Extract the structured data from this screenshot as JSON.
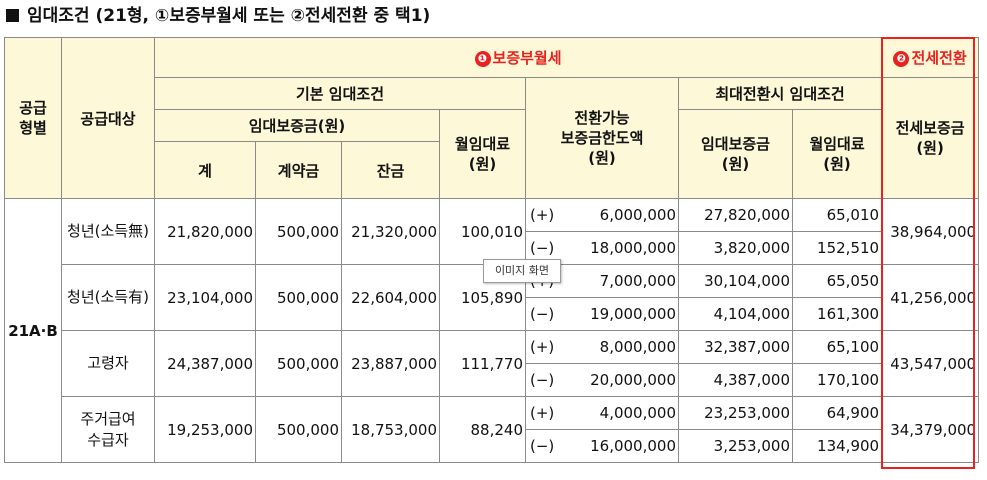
{
  "title": "임대조건 (21형, ①보증부월세 또는 ②전세전환 중 택1)",
  "headers": {
    "supply_type": [
      "공급",
      "형별"
    ],
    "target": "공급대상",
    "option1_marker": "❶",
    "option1": "보증부월세",
    "option2_marker": "❷",
    "option2": "전세전환",
    "basic": "기본 임대조건",
    "deposit": "임대보증금(원)",
    "total": "계",
    "contract": "계약금",
    "balance": "잔금",
    "rent": [
      "월임대료",
      "(원)"
    ],
    "convertible": [
      "전환가능",
      "보증금한도액",
      "(원)"
    ],
    "maxconv": "최대전환시 임대조건",
    "max_deposit": [
      "임대보증금",
      "(원)"
    ],
    "max_rent": [
      "월임대료",
      "(원)"
    ],
    "jeonse": [
      "전세보증금",
      "(원)"
    ]
  },
  "type_label": "21A·B",
  "rows": [
    {
      "target": [
        "청년(소득無)"
      ],
      "total": "21,820,000",
      "contract": "500,000",
      "balance": "21,320,000",
      "rent": "100,010",
      "plus": {
        "sign": "(+)",
        "amount": "6,000,000",
        "deposit": "27,820,000",
        "rent": "65,010"
      },
      "minus": {
        "sign": "(−)",
        "amount": "18,000,000",
        "deposit": "3,820,000",
        "rent": "152,510"
      },
      "jeonse": "38,964,000"
    },
    {
      "target": [
        "청년(소득有)"
      ],
      "total": "23,104,000",
      "contract": "500,000",
      "balance": "22,604,000",
      "rent": "105,890",
      "plus": {
        "sign": "(+)",
        "amount": "7,000,000",
        "deposit": "30,104,000",
        "rent": "65,050"
      },
      "minus": {
        "sign": "(−)",
        "amount": "19,000,000",
        "deposit": "4,104,000",
        "rent": "161,300"
      },
      "jeonse": "41,256,000"
    },
    {
      "target": [
        "고령자"
      ],
      "total": "24,387,000",
      "contract": "500,000",
      "balance": "23,887,000",
      "rent": "111,770",
      "plus": {
        "sign": "(+)",
        "amount": "8,000,000",
        "deposit": "32,387,000",
        "rent": "65,100"
      },
      "minus": {
        "sign": "(−)",
        "amount": "20,000,000",
        "deposit": "4,387,000",
        "rent": "170,100"
      },
      "jeonse": "43,547,000"
    },
    {
      "target": [
        "주거급여",
        "수급자"
      ],
      "total": "19,253,000",
      "contract": "500,000",
      "balance": "18,753,000",
      "rent": "88,240",
      "plus": {
        "sign": "(+)",
        "amount": "4,000,000",
        "deposit": "23,253,000",
        "rent": "64,900"
      },
      "minus": {
        "sign": "(−)",
        "amount": "16,000,000",
        "deposit": "3,253,000",
        "rent": "134,900"
      },
      "jeonse": "34,379,000"
    }
  ],
  "tooltip": "이미지 화면",
  "colors": {
    "header_bg": "#fdf9d8",
    "accent": "#e8231f",
    "border": "#8a8a8a"
  }
}
